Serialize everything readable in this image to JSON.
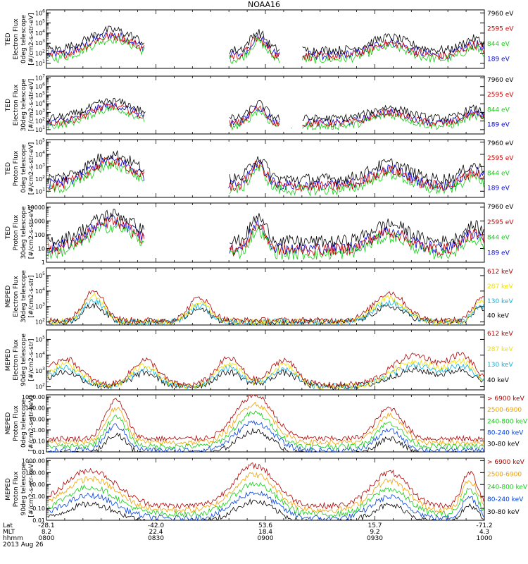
{
  "title": "NOAA16",
  "date": "2013 Aug 26",
  "footer": {
    "rows": [
      {
        "label": "Lat",
        "values": [
          "-28.1",
          "-42.0",
          "53.6",
          "15.7",
          "-71.2"
        ]
      },
      {
        "label": "MLT",
        "values": [
          "8.2",
          "22.4",
          "18.4",
          "9.2",
          "4.3"
        ]
      },
      {
        "label": "hhmm",
        "values": [
          "0800",
          "0830",
          "0900",
          "0930",
          "1000"
        ]
      }
    ]
  },
  "chart_data": [
    {
      "type": "line",
      "ylabel": [
        "TED",
        "Electron Flux",
        "0deg telescope",
        "[#/cm2-s-str-eV]"
      ],
      "yticks": [
        "10^1",
        "10^2",
        "10^3",
        "10^4",
        "10^5",
        "10^6"
      ],
      "log_range": [
        0.5,
        6.3
      ],
      "legend": [
        {
          "name": "7960 eV",
          "color": "#000000"
        },
        {
          "name": "2595 eV",
          "color": "#d00000"
        },
        {
          "name": "844 eV",
          "color": "#10d010"
        },
        {
          "name": "189 eV",
          "color": "#0000e0"
        }
      ]
    },
    {
      "type": "line",
      "ylabel": [
        "TED",
        "Electron Flux",
        "30deg telescope",
        "[#/cm2-s-str-eV]"
      ],
      "yticks": [
        "10^1",
        "10^2",
        "10^3",
        "10^4",
        "10^5",
        "10^6",
        "10^7"
      ],
      "log_range": [
        0.5,
        7.2
      ],
      "legend": [
        {
          "name": "7960 eV",
          "color": "#000000"
        },
        {
          "name": "2595 eV",
          "color": "#d00000"
        },
        {
          "name": "844 eV",
          "color": "#10d010"
        },
        {
          "name": "189 eV",
          "color": "#0000e0"
        }
      ]
    },
    {
      "type": "line",
      "ylabel": [
        "TED",
        "Proton Flux",
        "0deg telescope",
        "[#/cm2-s-str-eV]"
      ],
      "yticks": [
        "10^1",
        "10^2",
        "10^3",
        "10^4",
        "10^5"
      ],
      "log_range": [
        0.5,
        5.2
      ],
      "legend": [
        {
          "name": "7960 eV",
          "color": "#000000"
        },
        {
          "name": "2595 eV",
          "color": "#d00000"
        },
        {
          "name": "844 eV",
          "color": "#10d010"
        },
        {
          "name": "189 eV",
          "color": "#0000e0"
        }
      ]
    },
    {
      "type": "line",
      "ylabel": [
        "TED",
        "Proton Flux",
        "30deg telescope",
        "[#/cm2-s-str-eV]"
      ],
      "yticks": [
        "1",
        "10",
        "100",
        "1000",
        "10000"
      ],
      "log_range": [
        0,
        4.3
      ],
      "legend": [
        {
          "name": "7960 eV",
          "color": "#000000"
        },
        {
          "name": "2595 eV",
          "color": "#d00000"
        },
        {
          "name": "844 eV",
          "color": "#10d010"
        },
        {
          "name": "189 eV",
          "color": "#0000e0"
        }
      ]
    },
    {
      "type": "line",
      "ylabel": [
        "MEPED",
        "Electron Flux",
        "30deg telescope",
        "[#/cm2-s-str]"
      ],
      "yticks": [
        "10^2",
        "10^3",
        "10^4",
        "10^5"
      ],
      "log_range": [
        1.8,
        5.5
      ],
      "legend": [
        {
          "name": "612 keV",
          "color": "#b00000"
        },
        {
          "name": "287 keV",
          "color": "#f0e000"
        },
        {
          "name": "130 keV",
          "color": "#10b0e0"
        },
        {
          "name": "40 keV",
          "color": "#000000"
        }
      ]
    },
    {
      "type": "line",
      "ylabel": [
        "MEPED",
        "Electron Flux",
        "90deg telescope",
        "[#/cm2-s-str]"
      ],
      "yticks": [
        "10^2",
        "10^3",
        "10^4",
        "10^5"
      ],
      "log_range": [
        1.8,
        5.6
      ],
      "legend": [
        {
          "name": "612 keV",
          "color": "#b00000"
        },
        {
          "name": "287 keV",
          "color": "#f0e000"
        },
        {
          "name": "130 keV",
          "color": "#10b0e0"
        },
        {
          "name": "40 keV",
          "color": "#000000"
        }
      ]
    },
    {
      "type": "line",
      "ylabel": [
        "MEPED",
        "Proton Flux",
        "0deg telescope",
        "[#/cm2-s-str-keV]"
      ],
      "yticks": [
        "0.01",
        "0.10",
        "1.00",
        "10.00",
        "100.00",
        "1000.00"
      ],
      "log_range": [
        -2,
        3.2
      ],
      "legend": [
        {
          "name": "> 6900 keV",
          "color": "#b00000"
        },
        {
          "name": "2500-6900",
          "color": "#f0a000"
        },
        {
          "name": "240-800 keV",
          "color": "#10d010"
        },
        {
          "name": "80-240 keV",
          "color": "#0040e0"
        },
        {
          "name": "30-80 keV",
          "color": "#000000"
        }
      ]
    },
    {
      "type": "line",
      "ylabel": [
        "MEPED",
        "Proton Flux",
        "90deg telescope",
        "[#/cm2-s-str-keV]"
      ],
      "yticks": [
        "0.01",
        "0.10",
        "1.00",
        "10.00",
        "100.00",
        "1000.00"
      ],
      "log_range": [
        -2,
        3.2
      ],
      "legend": [
        {
          "name": "> 6900 keV",
          "color": "#b00000"
        },
        {
          "name": "2500-6900",
          "color": "#f0a000"
        },
        {
          "name": "240-800 keV",
          "color": "#10d010"
        },
        {
          "name": "80-240 keV",
          "color": "#0040e0"
        },
        {
          "name": "30-80 keV",
          "color": "#000000"
        }
      ]
    }
  ]
}
